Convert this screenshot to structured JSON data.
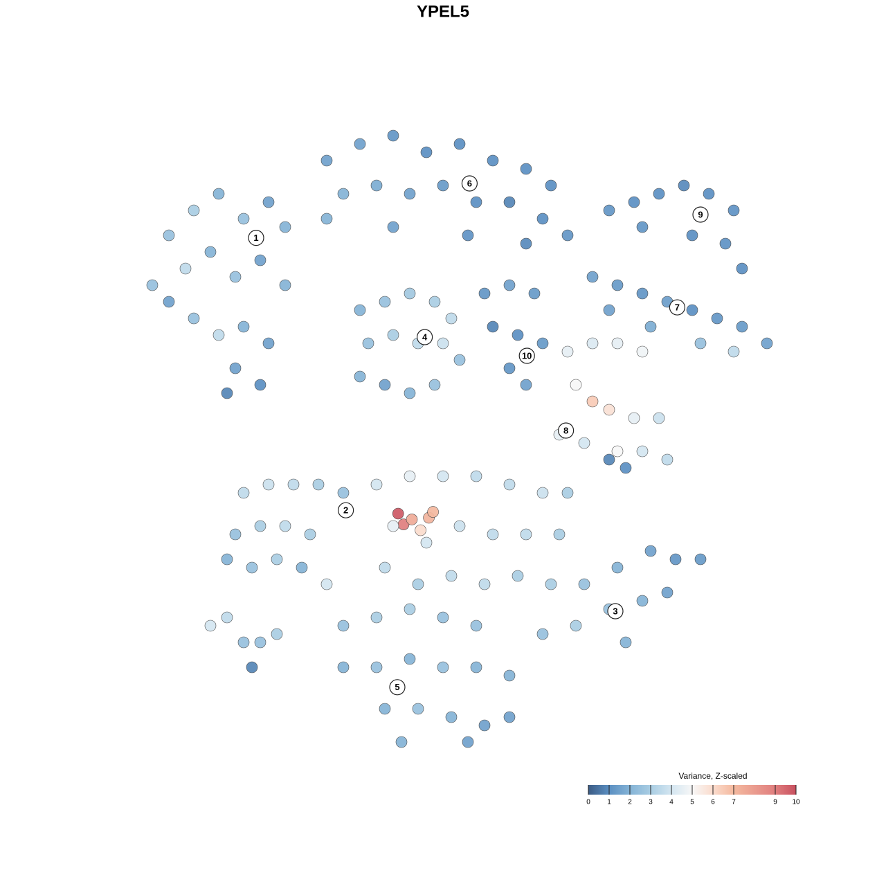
{
  "chart_data": {
    "type": "scatter",
    "title": "YPEL5",
    "xlim": [
      -45,
      45
    ],
    "ylim": [
      -45,
      45
    ],
    "x": [
      -33,
      -30,
      -27,
      -24,
      -21,
      -19,
      -35,
      -31,
      -28,
      -25,
      -22,
      -19,
      -30,
      -27,
      -24,
      -21,
      -25,
      -22,
      -26,
      -33,
      -14,
      -10,
      -6,
      -2,
      2,
      6,
      10,
      13,
      -12,
      -8,
      -4,
      0,
      4,
      8,
      12,
      15,
      -6,
      3,
      -14,
      10,
      20,
      23,
      26,
      29,
      32,
      35,
      24,
      30,
      34,
      36,
      18,
      21,
      24,
      27,
      30,
      33,
      36,
      39,
      20,
      25,
      31,
      35,
      -10,
      -7,
      -4,
      -1,
      1,
      -9,
      -6,
      -3,
      0,
      2,
      -10,
      -7,
      -4,
      -1,
      5,
      8,
      11,
      6,
      9,
      12,
      8,
      10,
      15,
      18,
      21,
      24,
      16,
      18,
      20,
      23,
      26,
      14,
      17,
      21,
      24,
      27,
      22,
      20,
      -24,
      -21,
      -18,
      -15,
      -12,
      -25,
      -22,
      -19,
      -16,
      -26,
      -23,
      -20,
      -17,
      -14,
      -5.4,
      -4.75,
      -3.75,
      -1.7,
      -1.2,
      -2.7,
      -8,
      -4,
      0,
      4,
      8,
      12,
      15,
      -6,
      -2,
      2,
      6,
      10,
      14,
      -7,
      -3,
      1,
      5,
      9,
      13,
      17,
      21,
      25,
      28,
      31,
      20,
      24,
      27,
      16,
      12,
      22,
      -12,
      -8,
      -4,
      0,
      4,
      -12,
      -8,
      -4,
      0,
      4,
      8,
      -7,
      -3,
      1,
      5,
      8,
      -5,
      3,
      -28,
      -26,
      -24,
      -22,
      -23,
      -20
    ],
    "y": [
      25,
      28,
      30,
      27,
      29,
      26,
      19,
      21,
      23,
      20,
      22,
      19,
      15,
      13,
      14,
      12,
      9,
      7,
      6,
      17,
      34,
      36,
      37,
      35,
      36,
      34,
      33,
      31,
      30,
      31,
      30,
      31,
      29,
      29,
      27,
      25,
      26,
      25,
      27,
      24,
      28,
      29,
      30,
      31,
      30,
      28,
      26,
      25,
      24,
      21,
      20,
      19,
      18,
      17,
      16,
      15,
      14,
      12,
      16,
      14,
      12,
      11,
      16,
      17,
      18,
      17,
      15,
      12,
      13,
      12,
      12,
      10,
      8,
      7,
      6,
      7,
      18,
      19,
      18,
      14,
      13,
      12,
      9,
      7,
      11,
      12,
      12,
      11,
      7,
      5,
      4,
      3,
      3,
      1,
      0,
      -1,
      -1,
      -2,
      -3,
      -2,
      -6,
      -5,
      -5,
      -5,
      -6,
      -11,
      -10,
      -10,
      -11,
      -14,
      -15,
      -14,
      -15,
      -17,
      -8.5,
      -9.8,
      -9.2,
      -9,
      -8.3,
      -10.5,
      -5,
      -4,
      -4,
      -4,
      -5,
      -6,
      -6,
      -10,
      -12,
      -10,
      -11,
      -11,
      -11,
      -15,
      -17,
      -16,
      -17,
      -16,
      -17,
      -17,
      -15,
      -13,
      -14,
      -14,
      -20,
      -19,
      -18,
      -22,
      -23,
      -24,
      -22,
      -21,
      -20,
      -21,
      -22,
      -27,
      -27,
      -26,
      -27,
      -27,
      -28,
      -32,
      -32,
      -33,
      -34,
      -33,
      -36,
      -36,
      -22,
      -21,
      -24,
      -24,
      -27,
      -23
    ],
    "values": [
      2.5,
      3,
      2,
      2.5,
      1.5,
      2,
      2.5,
      3.5,
      2,
      2.5,
      1.5,
      2,
      2.5,
      3.5,
      2,
      1.5,
      1.5,
      1,
      0.8,
      1.5,
      1.5,
      1.5,
      1.2,
      1,
      1,
      1,
      1,
      1,
      2,
      1.8,
      1.5,
      1.3,
      1,
      0.8,
      1,
      1.2,
      1.5,
      1.1,
      2,
      0.9,
      1.2,
      1,
      1,
      0.9,
      1,
      1.1,
      1.2,
      1,
      1.1,
      1,
      1.5,
      1.3,
      1.2,
      1.4,
      1,
      1.2,
      1.3,
      1.5,
      1.5,
      1.8,
      2.5,
      3.5,
      2,
      2.5,
      2.8,
      3,
      3.5,
      2.5,
      3,
      3.5,
      3.8,
      2.5,
      2,
      1.5,
      2,
      2.5,
      1.2,
      1.5,
      1.3,
      0.8,
      1,
      1.3,
      1.2,
      1.5,
      4.5,
      4.2,
      4.5,
      4.8,
      5,
      6.5,
      5.8,
      4.5,
      3.8,
      4.5,
      4,
      5,
      4,
      3.5,
      1,
      0.8,
      3.5,
      3.8,
      3.5,
      3,
      2.5,
      2.5,
      3,
      3.5,
      3,
      2,
      2.5,
      3,
      2,
      4,
      9.8,
      9,
      7.5,
      7.2,
      7,
      6,
      4,
      4.5,
      4,
      3.5,
      3.5,
      3.8,
      3,
      4.5,
      4,
      3.8,
      3.5,
      3.5,
      3,
      3.5,
      3,
      3.5,
      3.5,
      3,
      3,
      2.5,
      2,
      1.5,
      1.2,
      1.3,
      2.5,
      2,
      1.5,
      3,
      2.5,
      2,
      2.5,
      3,
      3,
      2.5,
      2.5,
      2,
      2.5,
      2,
      2.5,
      2,
      2,
      2,
      2.5,
      2,
      1.5,
      1.5,
      2,
      1.5,
      4,
      3.5,
      2.5,
      2.5,
      0.8,
      3
    ],
    "annotations": [
      {
        "text": "1",
        "x": -22.5,
        "y": 24.7
      },
      {
        "text": "2",
        "x": -11.7,
        "y": -8.1
      },
      {
        "text": "3",
        "x": 20.75,
        "y": -20.25
      },
      {
        "text": "4",
        "x": -2.2,
        "y": 12.75
      },
      {
        "text": "5",
        "x": -5.5,
        "y": -29.4
      },
      {
        "text": "6",
        "x": 3.2,
        "y": 31.25
      },
      {
        "text": "7",
        "x": 28.2,
        "y": 16.33
      },
      {
        "text": "8",
        "x": 14.8,
        "y": 1.5
      },
      {
        "text": "9",
        "x": 31.0,
        "y": 27.5
      },
      {
        "text": "10",
        "x": 10.1,
        "y": 10.5
      }
    ],
    "colorbar": {
      "title": "Variance, Z-scaled",
      "lim": [
        0,
        10
      ],
      "ticks": [
        0,
        1,
        2,
        3,
        4,
        5,
        6,
        7,
        9,
        10
      ],
      "stops": [
        [
          0,
          "#3b5b84"
        ],
        [
          1,
          "#5b8fc2"
        ],
        [
          2,
          "#84b3d6"
        ],
        [
          3,
          "#a9cde3"
        ],
        [
          4,
          "#d4e6f1"
        ],
        [
          5,
          "#f7f7f7"
        ],
        [
          6,
          "#fbdccd"
        ],
        [
          7,
          "#f4b99f"
        ],
        [
          9,
          "#e07e7e"
        ],
        [
          10,
          "#c8505f"
        ]
      ]
    }
  }
}
